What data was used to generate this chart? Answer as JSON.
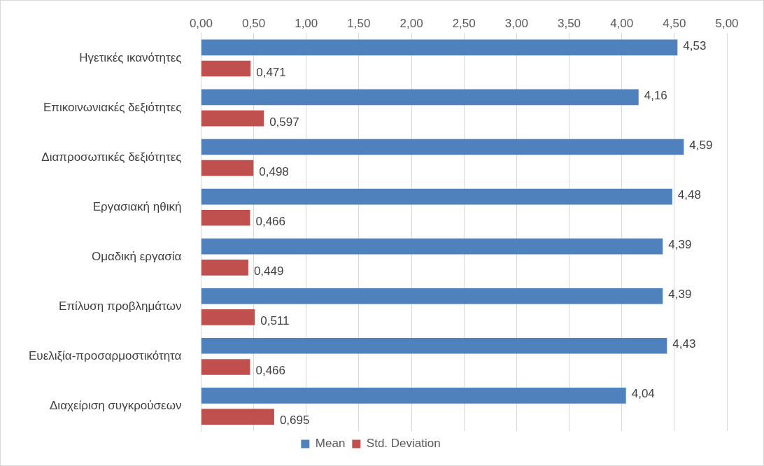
{
  "chart_data": {
    "type": "bar",
    "orientation": "horizontal",
    "categories": [
      "Ηγετικές ικανότητες",
      "Επικοινωνιακές δεξιότητες",
      "Διαπροσωπικές δεξιότητες",
      "Εργασιακή ηθική",
      "Ομαδική εργασία",
      "Επίλυση προβλημάτων",
      "Ευελιξία-προσαρμοστικότητα",
      "Διαχείριση συγκρούσεων"
    ],
    "series": [
      {
        "name": "Mean",
        "color": "#4f81bd",
        "values": [
          4.53,
          4.16,
          4.59,
          4.48,
          4.39,
          4.39,
          4.43,
          4.04
        ],
        "value_labels": [
          "4,53",
          "4,16",
          "4,59",
          "4,48",
          "4,39",
          "4,39",
          "4,43",
          "4,04"
        ]
      },
      {
        "name": "Std. Deviation",
        "color": "#c0504d",
        "values": [
          0.471,
          0.597,
          0.498,
          0.466,
          0.449,
          0.511,
          0.466,
          0.695
        ],
        "value_labels": [
          "0,471",
          "0,597",
          "0,498",
          "0,466",
          "0,449",
          "0,511",
          "0,466",
          "0,695"
        ]
      }
    ],
    "xlim": [
      0,
      5
    ],
    "xticks": [
      {
        "value": 0,
        "label": "0,00"
      },
      {
        "value": 0.5,
        "label": "0,50"
      },
      {
        "value": 1,
        "label": "1,00"
      },
      {
        "value": 1.5,
        "label": "1,50"
      },
      {
        "value": 2,
        "label": "2,00"
      },
      {
        "value": 2.5,
        "label": "2,50"
      },
      {
        "value": 3,
        "label": "3,00"
      },
      {
        "value": 3.5,
        "label": "3,50"
      },
      {
        "value": 4,
        "label": "4,00"
      },
      {
        "value": 4.5,
        "label": "4,50"
      },
      {
        "value": 5,
        "label": "5,00"
      }
    ],
    "grid": "x",
    "legend": "bottom"
  }
}
